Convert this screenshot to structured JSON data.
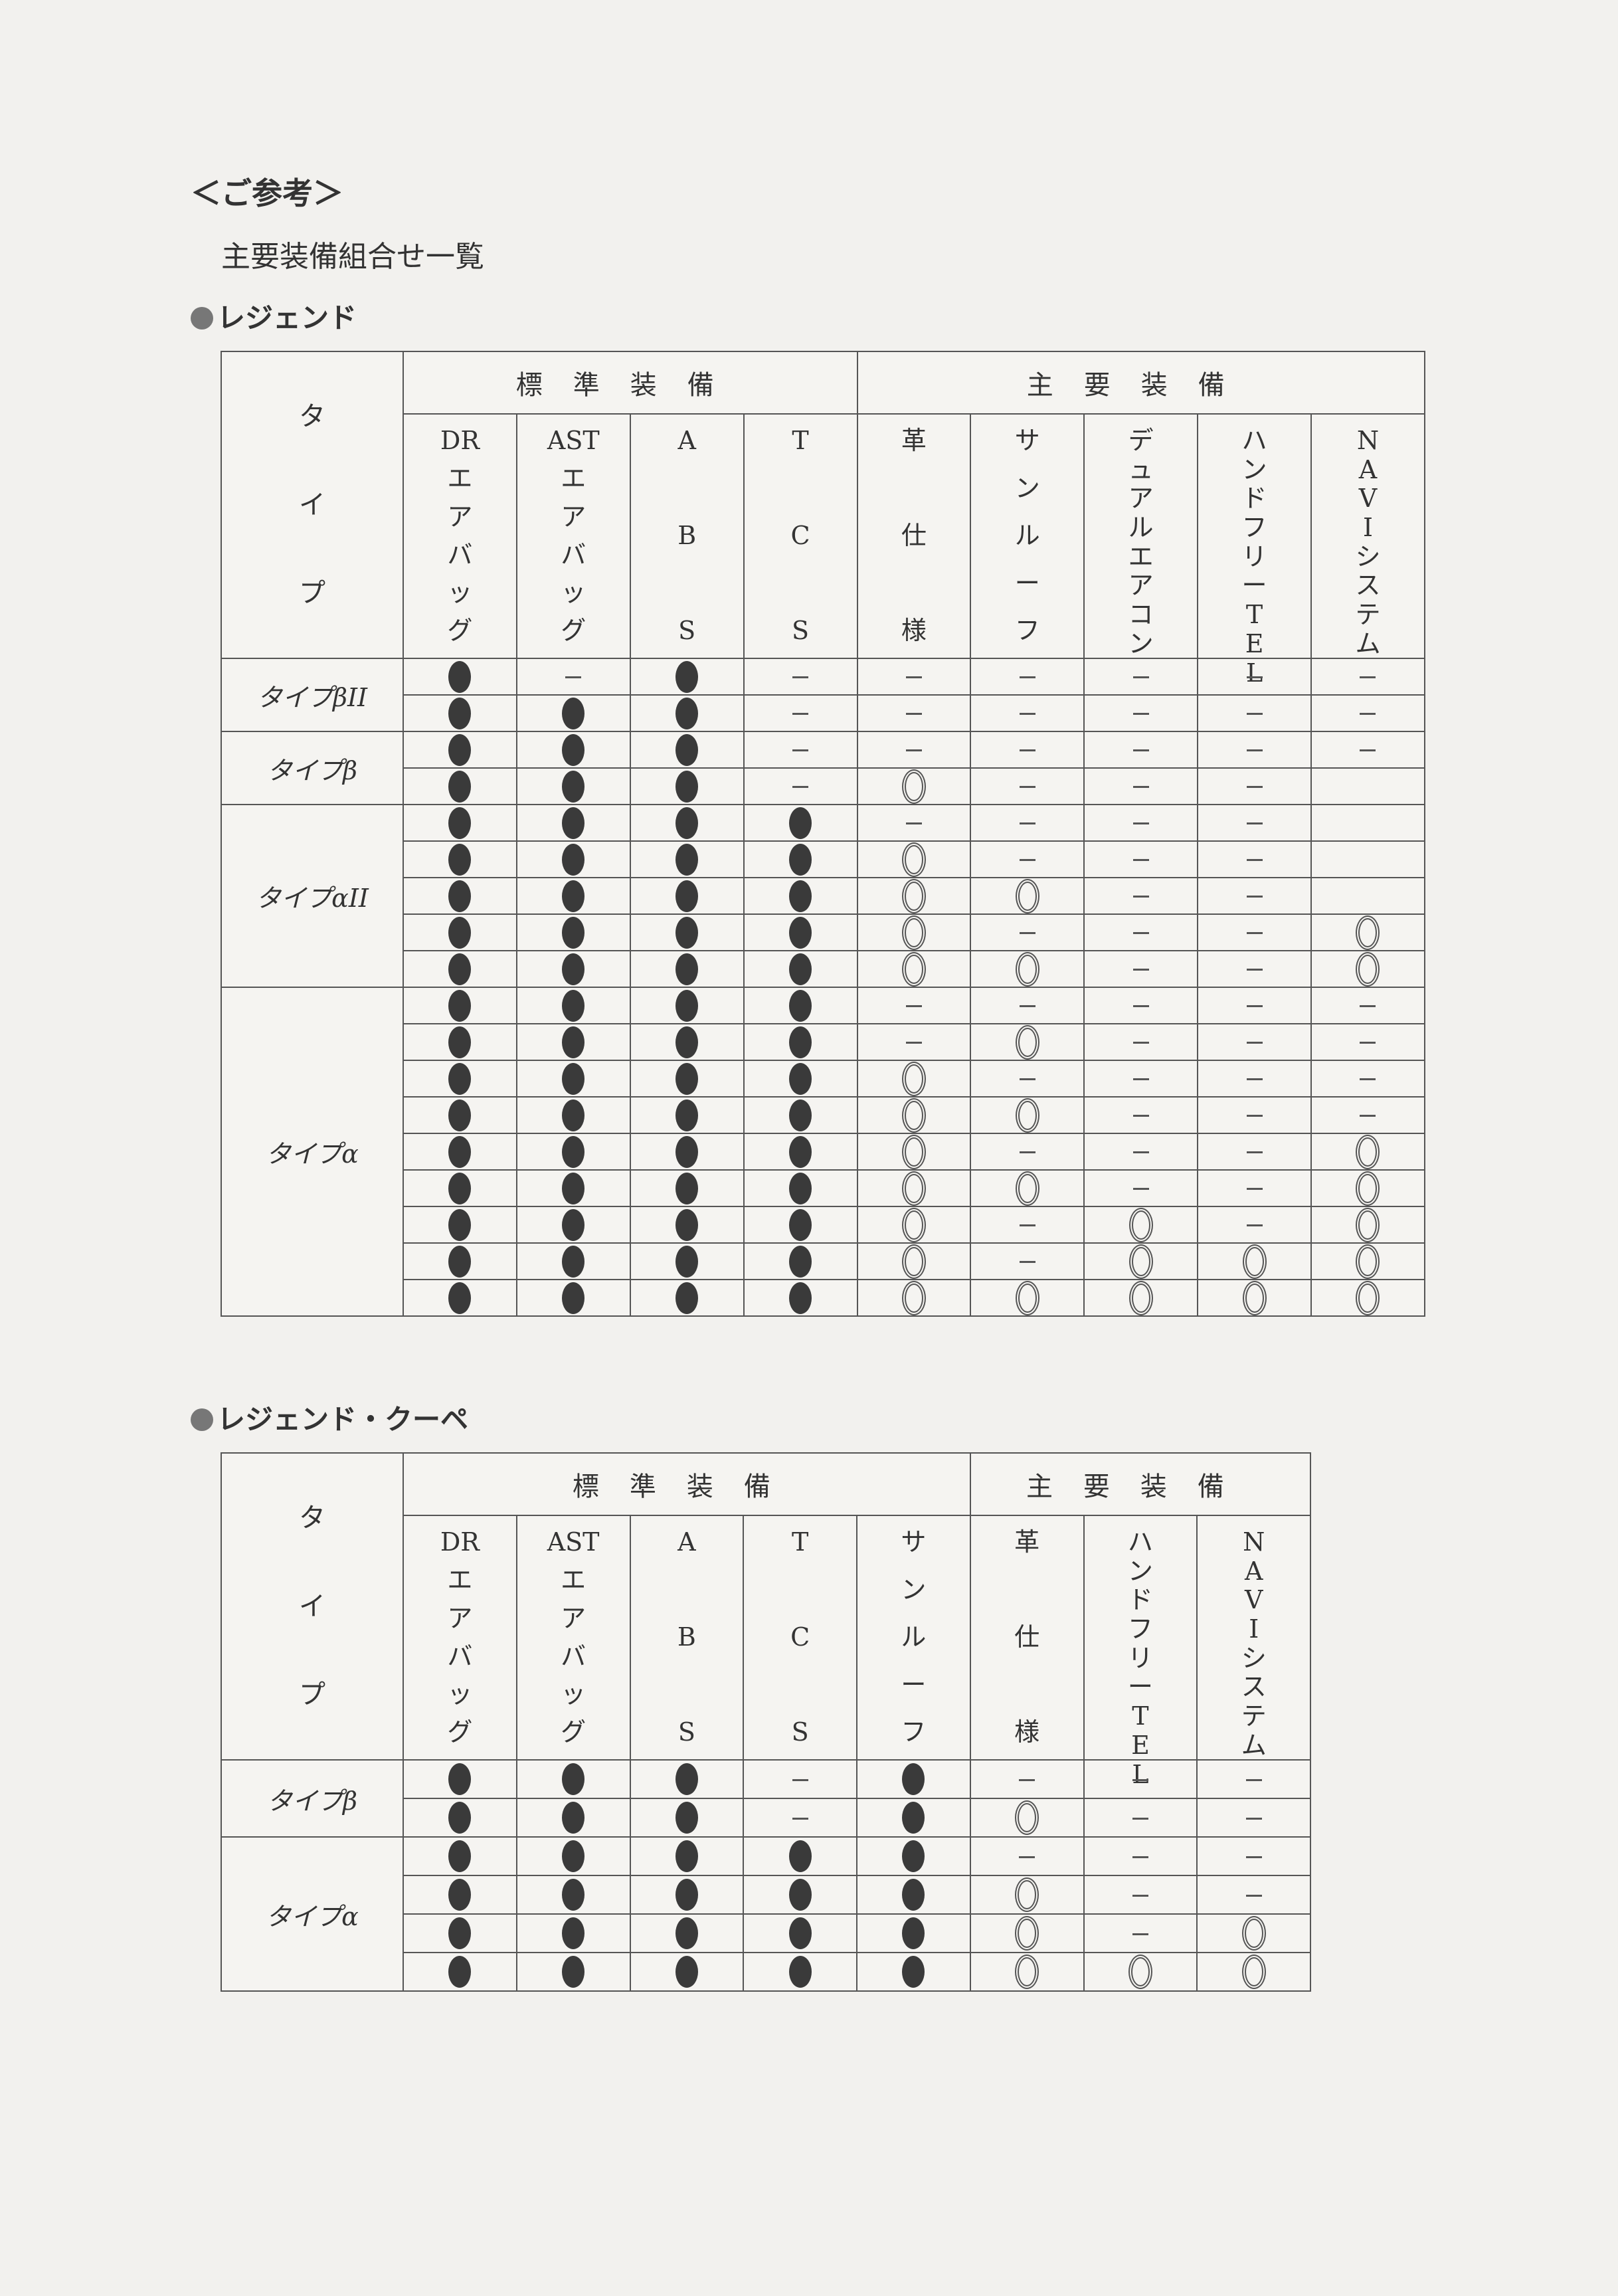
{
  "heading": "＜ご参考＞",
  "subtitle": "主要装備組合せ一覧",
  "legend_symbols": {
    "standard": "●",
    "option": "◎",
    "none": "—"
  },
  "tables": [
    {
      "section_title": "レジェンド",
      "type_header": [
        "タ",
        "イ",
        "プ"
      ],
      "groups": [
        {
          "label": "標準装備",
          "span": 4
        },
        {
          "label": "主要装備",
          "span": 5
        }
      ],
      "columns": [
        [
          "DR",
          "エ",
          "ア",
          "バ",
          "ッ",
          "グ"
        ],
        [
          "AST",
          "エ",
          "ア",
          "バ",
          "ッ",
          "グ"
        ],
        [
          "A",
          "B",
          "S"
        ],
        [
          "T",
          "C",
          "S"
        ],
        [
          "革",
          "仕",
          "様"
        ],
        [
          "サ",
          "ン",
          "ル",
          "ー",
          "フ"
        ],
        [
          "デ",
          "ュ",
          "ア",
          "ル",
          "エ",
          "ア",
          "コ",
          "ン"
        ],
        [
          "ハ",
          "ン",
          "ド",
          "フ",
          "リ",
          "ー",
          "T",
          "E",
          "L"
        ],
        [
          "N",
          "A",
          "V",
          "I",
          "シ",
          "ス",
          "テ",
          "ム"
        ]
      ],
      "row_groups": [
        {
          "label": "タイプβII",
          "rows": [
            [
              "●",
              "—",
              "●",
              "—",
              "—",
              "—",
              "—",
              "—",
              "—"
            ],
            [
              "●",
              "●",
              "●",
              "—",
              "—",
              "—",
              "—",
              "—",
              "—"
            ]
          ]
        },
        {
          "label": "タイプβ",
          "rows": [
            [
              "●",
              "●",
              "●",
              "—",
              "—",
              "—",
              "—",
              "—",
              "—"
            ],
            [
              "●",
              "●",
              "●",
              "—",
              "◎",
              "—",
              "—",
              "—",
              ""
            ]
          ]
        },
        {
          "label": "タイプαII",
          "rows": [
            [
              "●",
              "●",
              "●",
              "●",
              "—",
              "—",
              "—",
              "—",
              ""
            ],
            [
              "●",
              "●",
              "●",
              "●",
              "◎",
              "—",
              "—",
              "—",
              ""
            ],
            [
              "●",
              "●",
              "●",
              "●",
              "◎",
              "◎",
              "—",
              "—",
              ""
            ],
            [
              "●",
              "●",
              "●",
              "●",
              "◎",
              "—",
              "—",
              "—",
              "◎"
            ],
            [
              "●",
              "●",
              "●",
              "●",
              "◎",
              "◎",
              "—",
              "—",
              "◎"
            ]
          ]
        },
        {
          "label": "タイプα",
          "rows": [
            [
              "●",
              "●",
              "●",
              "●",
              "—",
              "—",
              "—",
              "—",
              "—"
            ],
            [
              "●",
              "●",
              "●",
              "●",
              "—",
              "◎",
              "—",
              "—",
              "—"
            ],
            [
              "●",
              "●",
              "●",
              "●",
              "◎",
              "—",
              "—",
              "—",
              "—"
            ],
            [
              "●",
              "●",
              "●",
              "●",
              "◎",
              "◎",
              "—",
              "—",
              "—"
            ],
            [
              "●",
              "●",
              "●",
              "●",
              "◎",
              "—",
              "—",
              "—",
              "◎"
            ],
            [
              "●",
              "●",
              "●",
              "●",
              "◎",
              "◎",
              "—",
              "—",
              "◎"
            ],
            [
              "●",
              "●",
              "●",
              "●",
              "◎",
              "—",
              "◎",
              "—",
              "◎"
            ],
            [
              "●",
              "●",
              "●",
              "●",
              "◎",
              "—",
              "◎",
              "◎",
              "◎"
            ],
            [
              "●",
              "●",
              "●",
              "●",
              "◎",
              "◎",
              "◎",
              "◎",
              "◎"
            ]
          ]
        }
      ]
    },
    {
      "section_title": "レジェンド・クーペ",
      "type_header": [
        "タ",
        "イ",
        "プ"
      ],
      "groups": [
        {
          "label": "標準装備",
          "span": 5
        },
        {
          "label": "主要装備",
          "span": 3
        }
      ],
      "columns": [
        [
          "DR",
          "エ",
          "ア",
          "バ",
          "ッ",
          "グ"
        ],
        [
          "AST",
          "エ",
          "ア",
          "バ",
          "ッ",
          "グ"
        ],
        [
          "A",
          "B",
          "S"
        ],
        [
          "T",
          "C",
          "S"
        ],
        [
          "サ",
          "ン",
          "ル",
          "ー",
          "フ"
        ],
        [
          "革",
          "仕",
          "様"
        ],
        [
          "ハ",
          "ン",
          "ド",
          "フ",
          "リ",
          "ー",
          "T",
          "E",
          "L"
        ],
        [
          "N",
          "A",
          "V",
          "I",
          "シ",
          "ス",
          "テ",
          "ム"
        ]
      ],
      "row_groups": [
        {
          "label": "タイプβ",
          "rows": [
            [
              "●",
              "●",
              "●",
              "—",
              "●",
              "—",
              "—",
              "—"
            ],
            [
              "●",
              "●",
              "●",
              "—",
              "●",
              "◎",
              "—",
              "—"
            ]
          ]
        },
        {
          "label": "タイプα",
          "rows": [
            [
              "●",
              "●",
              "●",
              "●",
              "●",
              "—",
              "—",
              "—"
            ],
            [
              "●",
              "●",
              "●",
              "●",
              "●",
              "◎",
              "—",
              "—"
            ],
            [
              "●",
              "●",
              "●",
              "●",
              "●",
              "◎",
              "—",
              "◎"
            ],
            [
              "●",
              "●",
              "●",
              "●",
              "●",
              "◎",
              "◎",
              "◎"
            ]
          ]
        }
      ]
    }
  ]
}
